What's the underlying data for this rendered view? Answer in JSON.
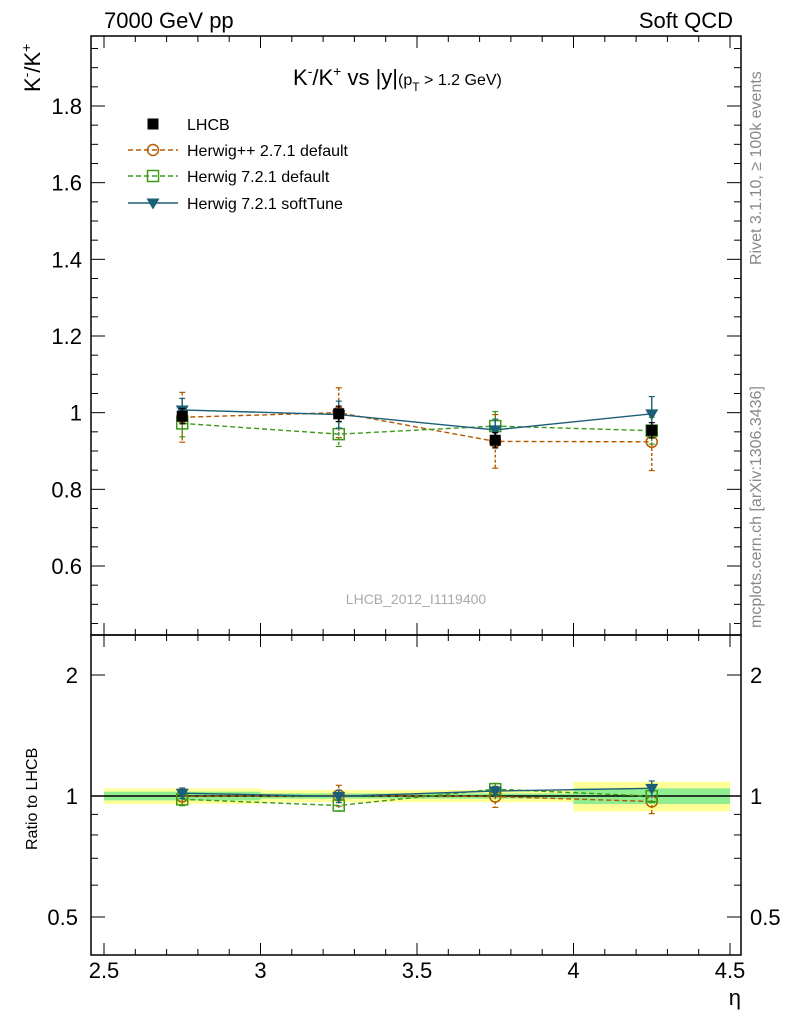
{
  "header": {
    "left": "7000 GeV pp",
    "right": "Soft QCD"
  },
  "side": {
    "rivet": "Rivet 3.1.10, ≥ 100k events",
    "mcplots": "mcplots.cern.ch [arXiv:1306.3436]"
  },
  "chart_data": [
    {
      "type": "line",
      "title": "K⁻/K⁺ vs |y|(p_T > 1.2 GeV)",
      "title_parts": {
        "k1": "K",
        "m": "-",
        "sep": "/K",
        "p": "+",
        "vs": " vs |y|",
        "sub_a": "(p",
        "sub_T": "T",
        "sub_b": " > 1.2 GeV)"
      },
      "ylabel": "K⁻/K⁺",
      "ylabel_parts": {
        "k": "K",
        "m": "-",
        "sep": "/K",
        "p": "+"
      },
      "xlabel": "η",
      "watermark": "LHCB_2012_I1119400",
      "xlim": [
        2.5,
        4.5
      ],
      "ylim": [
        0.43,
        1.99
      ],
      "yticks": [
        0.6,
        0.8,
        1.0,
        1.2,
        1.4,
        1.6,
        1.8
      ],
      "ytick_labels": [
        "0.6",
        "0.8",
        "1",
        "1.2",
        "1.4",
        "1.6",
        "1.8"
      ],
      "x": [
        2.75,
        3.25,
        3.75,
        4.25
      ],
      "series": [
        {
          "name": "LHCB",
          "style": "data",
          "color": "#000000",
          "marker": "square-filled",
          "values": [
            0.991,
            0.997,
            0.928,
            0.954
          ],
          "err": [
            0.02,
            0.02,
            0.02,
            0.02
          ]
        },
        {
          "name": "Herwig++ 2.7.1 default",
          "style": "dashed",
          "color": "#b35a00",
          "marker": "circle-open",
          "values": [
            0.988,
            1.0,
            0.925,
            0.924
          ],
          "err": [
            0.065,
            0.065,
            0.07,
            0.075
          ]
        },
        {
          "name": "Herwig 7.2.1 default",
          "style": "dashed",
          "color": "#3c9a1a",
          "marker": "square-open",
          "values": [
            0.972,
            0.944,
            0.965,
            0.953
          ],
          "err": [
            0.035,
            0.032,
            0.038,
            0.035
          ]
        },
        {
          "name": "Herwig 7.2.1 softTune",
          "style": "solid",
          "color": "#1b5e77",
          "marker": "triangle-down",
          "values": [
            1.007,
            0.995,
            0.955,
            0.997
          ],
          "err": [
            0.03,
            0.035,
            0.028,
            0.045
          ]
        }
      ]
    },
    {
      "type": "line",
      "ylabel": "Ratio to LHCB",
      "xlim": [
        2.5,
        4.5
      ],
      "ylim": [
        0.43,
        2.3
      ],
      "yscale": "log",
      "yticks": [
        0.5,
        1,
        2
      ],
      "ytick_labels": [
        "0.5",
        "1",
        "2"
      ],
      "xticks": [
        2.5,
        3,
        3.5,
        4,
        4.5
      ],
      "xtick_labels": [
        "2.5",
        "3",
        "3.5",
        "4",
        "4.5"
      ],
      "bands": [
        {
          "x": [
            2.5,
            3.0
          ],
          "stat": [
            0.975,
            1.025
          ],
          "total": [
            0.955,
            1.045
          ]
        },
        {
          "x": [
            3.0,
            3.5
          ],
          "stat": [
            0.985,
            1.015
          ],
          "total": [
            0.965,
            1.035
          ]
        },
        {
          "x": [
            3.5,
            4.0
          ],
          "stat": [
            0.985,
            1.015
          ],
          "total": [
            0.965,
            1.035
          ]
        },
        {
          "x": [
            4.0,
            4.5
          ],
          "stat": [
            0.955,
            1.045
          ],
          "total": [
            0.915,
            1.085
          ]
        }
      ],
      "band_colors": {
        "stat": "#90ee90",
        "total": "#ffff99"
      },
      "x": [
        2.75,
        3.25,
        3.75,
        4.25
      ],
      "series": [
        {
          "name": "Herwig++ 2.7.1 default",
          "style": "dashed",
          "color": "#b35a00",
          "marker": "circle-open",
          "values": [
            0.997,
            1.003,
            0.997,
            0.969
          ],
          "err": [
            0.05,
            0.06,
            0.06,
            0.065
          ]
        },
        {
          "name": "Herwig 7.2.1 default",
          "style": "dashed",
          "color": "#3c9a1a",
          "marker": "square-open",
          "values": [
            0.981,
            0.947,
            1.04,
            0.999
          ],
          "err": [
            0.035,
            0.03,
            0.035,
            0.035
          ]
        },
        {
          "name": "Herwig 7.2.1 softTune",
          "style": "solid",
          "color": "#1b5e77",
          "marker": "triangle-down",
          "values": [
            1.016,
            0.998,
            1.029,
            1.045
          ],
          "err": [
            0.03,
            0.035,
            0.025,
            0.045
          ]
        }
      ]
    }
  ]
}
